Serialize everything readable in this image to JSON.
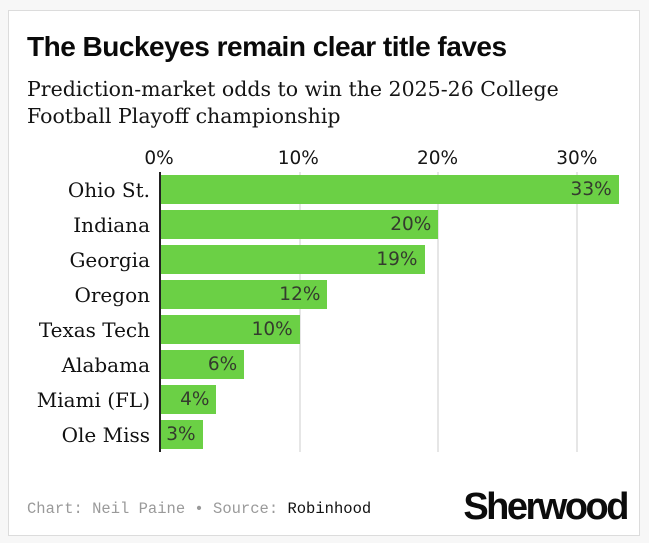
{
  "header": {
    "title": "The Buckeyes remain clear title faves",
    "subtitle": "Prediction-market odds to win the 2025-26 College Football Playoff championship"
  },
  "chart_data": {
    "type": "bar",
    "orientation": "horizontal",
    "title": "The Buckeyes remain clear title faves",
    "subtitle": "Prediction-market odds to win the 2025-26 College Football Playoff championship",
    "categories": [
      "Ohio St.",
      "Indiana",
      "Georgia",
      "Oregon",
      "Texas Tech",
      "Alabama",
      "Miami (FL)",
      "Ole Miss"
    ],
    "values": [
      33,
      20,
      19,
      12,
      10,
      6,
      4,
      3
    ],
    "value_labels": [
      "33%",
      "20%",
      "19%",
      "12%",
      "10%",
      "6%",
      "4%",
      "3%"
    ],
    "xlabel": "",
    "ylabel": "",
    "xlim": [
      0,
      33.6
    ],
    "axis_max": 33.6,
    "ticks": [
      {
        "value": 0,
        "label": "0%"
      },
      {
        "value": 10,
        "label": "10%"
      },
      {
        "value": 20,
        "label": "20%"
      },
      {
        "value": 30,
        "label": "30%"
      }
    ],
    "grid": true,
    "legend": false,
    "bar_color": "#6bd045"
  },
  "colors": {
    "bar_green": "#6bd045",
    "gridline": "#e6e6e6",
    "axis_line": "#222222",
    "card_background": "#ffffff",
    "page_background": "#f7f7f7",
    "footer_gray": "#9a9a9a",
    "footer_black": "#111111"
  },
  "footer": {
    "credit_gray_text": "Chart: Neil Paine • Source: ",
    "source_name": "Robinhood",
    "logo": "Sherwood"
  }
}
